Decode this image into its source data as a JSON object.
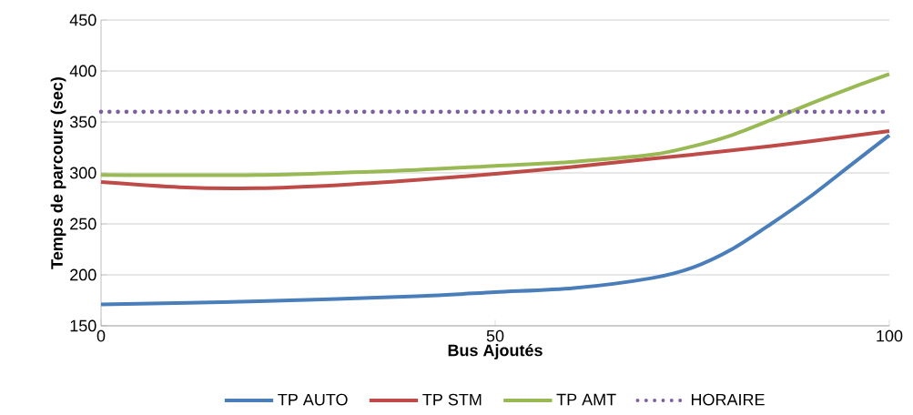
{
  "chart_data": {
    "type": "line",
    "xlabel": "Bus Ajoutés",
    "ylabel": "Temps de parcours (sec)",
    "xlim": [
      0,
      100
    ],
    "xticks": [
      0,
      50,
      100
    ],
    "ylim": [
      150,
      450
    ],
    "yticks": [
      150,
      200,
      250,
      300,
      350,
      400,
      450
    ],
    "grid": "y",
    "legend": "bottom",
    "series": [
      {
        "name": "TP AUTO",
        "color": "#4a7ebb",
        "line_style": "solid",
        "x": [
          0,
          20,
          40,
          50,
          60,
          70,
          75,
          80,
          85,
          90,
          95,
          100
        ],
        "values": [
          171,
          174,
          179,
          183,
          187,
          197,
          207,
          225,
          250,
          277,
          307,
          337
        ]
      },
      {
        "name": "TP STM",
        "color": "#be4b48",
        "line_style": "solid",
        "x": [
          0,
          10,
          20,
          30,
          40,
          50,
          60,
          70,
          80,
          90,
          100
        ],
        "values": [
          291,
          286,
          285,
          288,
          293,
          299,
          306,
          314,
          322,
          331,
          341
        ]
      },
      {
        "name": "TP AMT",
        "color": "#98b954",
        "line_style": "solid",
        "x": [
          0,
          20,
          40,
          50,
          60,
          70,
          75,
          80,
          85,
          90,
          95,
          100
        ],
        "values": [
          298,
          298,
          303,
          307,
          311,
          318,
          326,
          337,
          352,
          368,
          383,
          397
        ]
      },
      {
        "name": "HORAIRE",
        "color": "#7d60a0",
        "line_style": "dotted",
        "x": [
          0,
          100
        ],
        "values": [
          360,
          360
        ]
      }
    ]
  }
}
